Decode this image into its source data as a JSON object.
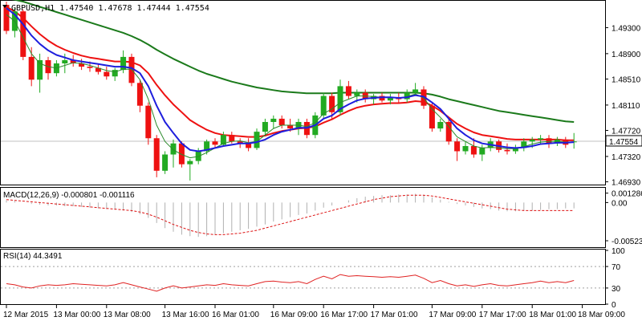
{
  "header": {
    "symbol": "GBPUSD,H1",
    "open": "1.47540",
    "high": "1.47678",
    "low": "1.47444",
    "close": "1.47554",
    "title": "GBPUSD,H1  1.47540  1.47678  1.47444  1.47554"
  },
  "macd_header": "MACD(12,26,9) -0.000801 -0.001116",
  "rsi_header": "RSI(14) 44.3491",
  "colors": {
    "bull": "#22aa22",
    "bear": "#ee1111",
    "sma_fast": "#1e1edd",
    "sma_slow": "#1b7a1b",
    "ma_thin": "#2a8a2a",
    "signal_red": "#dd1111",
    "rsi_line": "#e02222",
    "grid": "#c0c0c0",
    "price_label_bg": "#ffffff"
  },
  "chart_data": [
    {
      "type": "candlestick",
      "title": "GBPUSD,H1",
      "ylim": [
        1.469,
        1.497
      ],
      "y_ticks": [
        "1.49300",
        "1.48900",
        "1.48510",
        "1.48110",
        "1.47720",
        "1.47320",
        "1.46930"
      ],
      "y_tick_values": [
        1.493,
        1.489,
        1.4851,
        1.4811,
        1.4772,
        1.4732,
        1.4693
      ],
      "last_price_label": "1.47554",
      "last_price": 1.47554,
      "candles": [
        [
          1.4965,
          1.497,
          1.492,
          1.4925
        ],
        [
          1.4925,
          1.496,
          1.4915,
          1.4955
        ],
        [
          1.4955,
          1.4958,
          1.488,
          1.4885
        ],
        [
          1.4885,
          1.49,
          1.484,
          1.485
        ],
        [
          1.485,
          1.489,
          1.483,
          1.488
        ],
        [
          1.488,
          1.4885,
          1.485,
          1.486
        ],
        [
          1.486,
          1.488,
          1.4855,
          1.4875
        ],
        [
          1.4875,
          1.489,
          1.486,
          1.488
        ],
        [
          1.488,
          1.4888,
          1.487,
          1.4875
        ],
        [
          1.4875,
          1.4882,
          1.4865,
          1.487
        ],
        [
          1.487,
          1.4878,
          1.4862,
          1.4868
        ],
        [
          1.4868,
          1.4875,
          1.4858,
          1.4862
        ],
        [
          1.4862,
          1.487,
          1.485,
          1.4855
        ],
        [
          1.4855,
          1.4868,
          1.4848,
          1.4865
        ],
        [
          1.4865,
          1.4895,
          1.486,
          1.4885
        ],
        [
          1.4885,
          1.489,
          1.484,
          1.4845
        ],
        [
          1.4845,
          1.485,
          1.48,
          1.481
        ],
        [
          1.481,
          1.4815,
          1.475,
          1.476
        ],
        [
          1.476,
          1.4765,
          1.47,
          1.471
        ],
        [
          1.471,
          1.474,
          1.4705,
          1.4735
        ],
        [
          1.4735,
          1.4758,
          1.4715,
          1.4752
        ],
        [
          1.4752,
          1.4755,
          1.4715,
          1.472
        ],
        [
          1.472,
          1.4728,
          1.4695,
          1.4725
        ],
        [
          1.4725,
          1.4745,
          1.472,
          1.474
        ],
        [
          1.474,
          1.4758,
          1.4735,
          1.4755
        ],
        [
          1.4755,
          1.476,
          1.4745,
          1.475
        ],
        [
          1.475,
          1.477,
          1.4748,
          1.4765
        ],
        [
          1.4765,
          1.477,
          1.4752,
          1.4755
        ],
        [
          1.4755,
          1.476,
          1.4745,
          1.4752
        ],
        [
          1.4752,
          1.476,
          1.474,
          1.4745
        ],
        [
          1.4745,
          1.4775,
          1.4742,
          1.477
        ],
        [
          1.477,
          1.479,
          1.4765,
          1.4785
        ],
        [
          1.4785,
          1.4795,
          1.4775,
          1.479
        ],
        [
          1.479,
          1.4795,
          1.4775,
          1.478
        ],
        [
          1.478,
          1.479,
          1.477,
          1.4775
        ],
        [
          1.4775,
          1.479,
          1.4765,
          1.4785
        ],
        [
          1.4785,
          1.479,
          1.476,
          1.4765
        ],
        [
          1.4765,
          1.48,
          1.476,
          1.4795
        ],
        [
          1.4795,
          1.483,
          1.479,
          1.4825
        ],
        [
          1.4825,
          1.483,
          1.479,
          1.48
        ],
        [
          1.48,
          1.485,
          1.4795,
          1.484
        ],
        [
          1.484,
          1.4848,
          1.482,
          1.4825
        ],
        [
          1.4825,
          1.4835,
          1.4815,
          1.483
        ],
        [
          1.483,
          1.4835,
          1.4815,
          1.482
        ],
        [
          1.482,
          1.4828,
          1.4812,
          1.4825
        ],
        [
          1.4825,
          1.483,
          1.4815,
          1.4818
        ],
        [
          1.4818,
          1.4828,
          1.4812,
          1.4822
        ],
        [
          1.4822,
          1.483,
          1.4815,
          1.482
        ],
        [
          1.482,
          1.4835,
          1.4815,
          1.483
        ],
        [
          1.483,
          1.4845,
          1.4825,
          1.4835
        ],
        [
          1.4835,
          1.484,
          1.4805,
          1.481
        ],
        [
          1.481,
          1.4815,
          1.477,
          1.4775
        ],
        [
          1.4775,
          1.479,
          1.477,
          1.4785
        ],
        [
          1.4785,
          1.479,
          1.475,
          1.4755
        ],
        [
          1.4755,
          1.476,
          1.4725,
          1.474
        ],
        [
          1.474,
          1.4755,
          1.4735,
          1.4748
        ],
        [
          1.4748,
          1.476,
          1.473,
          1.4735
        ],
        [
          1.4735,
          1.475,
          1.4725,
          1.4745
        ],
        [
          1.4745,
          1.476,
          1.474,
          1.4755
        ],
        [
          1.4755,
          1.4758,
          1.4738,
          1.4742
        ],
        [
          1.4742,
          1.4752,
          1.4735,
          1.474
        ],
        [
          1.474,
          1.475,
          1.4736,
          1.4745
        ],
        [
          1.4745,
          1.476,
          1.474,
          1.4755
        ],
        [
          1.4755,
          1.4762,
          1.4745,
          1.4758
        ],
        [
          1.4758,
          1.4765,
          1.475,
          1.476
        ],
        [
          1.476,
          1.4765,
          1.4745,
          1.4752
        ],
        [
          1.4752,
          1.4762,
          1.4748,
          1.4758
        ],
        [
          1.4758,
          1.4762,
          1.4745,
          1.475
        ],
        [
          1.4754,
          1.4768,
          1.4744,
          1.4755
        ]
      ],
      "ma_blue": [
        1.496,
        1.495,
        1.4935,
        1.4918,
        1.4905,
        1.4895,
        1.4888,
        1.4884,
        1.488,
        1.4878,
        1.4876,
        1.4874,
        1.4872,
        1.487,
        1.487,
        1.4868,
        1.486,
        1.484,
        1.481,
        1.4785,
        1.4768,
        1.4752,
        1.4742,
        1.474,
        1.4742,
        1.4745,
        1.4748,
        1.475,
        1.4752,
        1.4752,
        1.4754,
        1.4758,
        1.4765,
        1.477,
        1.4773,
        1.4776,
        1.4776,
        1.478,
        1.479,
        1.4795,
        1.4805,
        1.4812,
        1.4818,
        1.4821,
        1.4822,
        1.4823,
        1.4823,
        1.4822,
        1.4823,
        1.4826,
        1.4824,
        1.4815,
        1.4805,
        1.479,
        1.4775,
        1.4765,
        1.4757,
        1.4752,
        1.475,
        1.4748,
        1.4746,
        1.4745,
        1.4746,
        1.4748,
        1.4751,
        1.4752,
        1.4753,
        1.4753,
        1.4754
      ],
      "ma_red": [
        1.4962,
        1.4955,
        1.4945,
        1.4932,
        1.492,
        1.491,
        1.4902,
        1.4896,
        1.4891,
        1.4887,
        1.4884,
        1.4882,
        1.488,
        1.4878,
        1.4878,
        1.4877,
        1.4872,
        1.486,
        1.4842,
        1.4826,
        1.4812,
        1.48,
        1.4788,
        1.478,
        1.4773,
        1.4768,
        1.4765,
        1.4764,
        1.4763,
        1.4762,
        1.4762,
        1.4764,
        1.4768,
        1.4771,
        1.4773,
        1.4775,
        1.4776,
        1.4778,
        1.4784,
        1.4789,
        1.4796,
        1.4802,
        1.4807,
        1.481,
        1.4812,
        1.4813,
        1.4814,
        1.4814,
        1.4815,
        1.4817,
        1.4816,
        1.481,
        1.4802,
        1.4792,
        1.4782,
        1.4775,
        1.4769,
        1.4765,
        1.4763,
        1.4761,
        1.4759,
        1.4758,
        1.4758,
        1.4758,
        1.4758,
        1.4758,
        1.4758,
        1.4757,
        1.4757
      ],
      "ma_green": [
        1.4975,
        1.4973,
        1.497,
        1.4966,
        1.4962,
        1.4958,
        1.4954,
        1.495,
        1.4946,
        1.4942,
        1.4938,
        1.4934,
        1.493,
        1.4926,
        1.4922,
        1.4917,
        1.4911,
        1.4904,
        1.4896,
        1.4889,
        1.4882,
        1.4876,
        1.487,
        1.4864,
        1.4859,
        1.4855,
        1.4851,
        1.4847,
        1.4844,
        1.4841,
        1.4838,
        1.4836,
        1.4834,
        1.4832,
        1.4831,
        1.483,
        1.4829,
        1.4829,
        1.4829,
        1.4829,
        1.483,
        1.483,
        1.483,
        1.483,
        1.483,
        1.483,
        1.483,
        1.483,
        1.483,
        1.483,
        1.4829,
        1.4827,
        1.4824,
        1.482,
        1.4817,
        1.4814,
        1.4811,
        1.4808,
        1.4805,
        1.4802,
        1.48,
        1.4798,
        1.4796,
        1.4794,
        1.4792,
        1.479,
        1.4788,
        1.4786,
        1.4785
      ],
      "ma_thin": [
        1.495,
        1.494,
        1.4915,
        1.489,
        1.4875,
        1.487,
        1.4868,
        1.4872,
        1.4876,
        1.4875,
        1.4872,
        1.4868,
        1.4864,
        1.4862,
        1.4866,
        1.4866,
        1.485,
        1.482,
        1.478,
        1.4755,
        1.4742,
        1.4735,
        1.473,
        1.4732,
        1.4738,
        1.4745,
        1.4752,
        1.4755,
        1.4756,
        1.4753,
        1.4755,
        1.4765,
        1.4775,
        1.478,
        1.478,
        1.478,
        1.4778,
        1.4784,
        1.4798,
        1.4805,
        1.4815,
        1.482,
        1.4825,
        1.4825,
        1.4824,
        1.4823,
        1.4822,
        1.4822,
        1.4824,
        1.4828,
        1.4822,
        1.4805,
        1.4792,
        1.4778,
        1.4762,
        1.4755,
        1.4748,
        1.4745,
        1.4746,
        1.4745,
        1.4744,
        1.4744,
        1.4747,
        1.4751,
        1.4754,
        1.4755,
        1.4755,
        1.4754,
        1.4754
      ]
    },
    {
      "type": "bar",
      "title": "MACD(12,26,9) -0.000801 -0.001116",
      "ylim": [
        -0.006,
        0.0018
      ],
      "y_ticks": [
        "0.001286",
        "0.00",
        "-0.00523"
      ],
      "y_tick_values": [
        0.001286,
        0.0,
        -0.00523
      ],
      "histogram": [
        0.0003,
        0.0002,
        0.0,
        -0.0002,
        -0.0003,
        -0.0004,
        -0.0004,
        -0.0005,
        -0.0005,
        -0.0006,
        -0.0007,
        -0.0008,
        -0.0009,
        -0.001,
        -0.0011,
        -0.0013,
        -0.0016,
        -0.0021,
        -0.0028,
        -0.0035,
        -0.004,
        -0.0044,
        -0.0046,
        -0.0047,
        -0.0046,
        -0.0044,
        -0.0042,
        -0.004,
        -0.0038,
        -0.0036,
        -0.0033,
        -0.003,
        -0.0026,
        -0.0023,
        -0.002,
        -0.0017,
        -0.0015,
        -0.0011,
        -0.0007,
        -0.0004,
        0.0,
        0.0003,
        0.0006,
        0.0008,
        0.0009,
        0.001,
        0.001,
        0.0011,
        0.0011,
        0.0012,
        0.001,
        0.0007,
        0.0004,
        0.0001,
        -0.0002,
        -0.0004,
        -0.0006,
        -0.0008,
        -0.0009,
        -0.0011,
        -0.0012,
        -0.0012,
        -0.0011,
        -0.0011,
        -0.001,
        -0.0009,
        -0.0009,
        -0.0008,
        -0.0008
      ],
      "signal": [
        0.0004,
        0.0003,
        0.0002,
        0.0001,
        0.0,
        -0.0001,
        -0.0002,
        -0.0003,
        -0.0004,
        -0.0005,
        -0.0006,
        -0.0007,
        -0.0008,
        -0.0009,
        -0.001,
        -0.0011,
        -0.0013,
        -0.0016,
        -0.002,
        -0.0025,
        -0.003,
        -0.0034,
        -0.0038,
        -0.0041,
        -0.0043,
        -0.0044,
        -0.0044,
        -0.0043,
        -0.0042,
        -0.004,
        -0.0038,
        -0.0035,
        -0.0032,
        -0.0029,
        -0.0026,
        -0.0023,
        -0.002,
        -0.0017,
        -0.0014,
        -0.0011,
        -0.0008,
        -0.0005,
        -0.0002,
        0.0001,
        0.0004,
        0.0006,
        0.0008,
        0.0009,
        0.001,
        0.001,
        0.001,
        0.0009,
        0.0007,
        0.0005,
        0.0003,
        0.0001,
        -0.0001,
        -0.0003,
        -0.0005,
        -0.0007,
        -0.0009,
        -0.001,
        -0.0011,
        -0.0011,
        -0.0011,
        -0.0011,
        -0.0011,
        -0.0011,
        -0.0011
      ]
    },
    {
      "type": "line",
      "title": "RSI(14) 44.3491",
      "ylim": [
        0,
        100
      ],
      "y_ticks": [
        "100",
        "70",
        "30",
        "0"
      ],
      "y_tick_values": [
        100,
        70,
        30,
        0
      ],
      "levels": [
        70,
        30
      ],
      "values": [
        38,
        36,
        32,
        30,
        34,
        36,
        35,
        36,
        38,
        37,
        36,
        35,
        34,
        36,
        40,
        36,
        32,
        28,
        24,
        30,
        34,
        30,
        32,
        34,
        36,
        35,
        38,
        36,
        35,
        34,
        38,
        42,
        43,
        41,
        40,
        42,
        38,
        46,
        52,
        47,
        55,
        52,
        53,
        52,
        51,
        50,
        51,
        50,
        52,
        54,
        48,
        40,
        44,
        38,
        34,
        36,
        33,
        36,
        38,
        35,
        34,
        36,
        38,
        40,
        43,
        40,
        42,
        40,
        44
      ]
    }
  ],
  "x_axis": {
    "labels": [
      "12 Mar 2015",
      "13 Mar 00:00",
      "13 Mar 08:00",
      "13 Mar 16:00",
      "16 Mar 01:00",
      "16 Mar 09:00",
      "16 Mar 17:00",
      "17 Mar 01:00",
      "17 Mar 09:00",
      "17 Mar 17:00",
      "18 Mar 01:00",
      "18 Mar 09:00"
    ],
    "label_candle_index": [
      0,
      6,
      12,
      19,
      25,
      32,
      38,
      44,
      51,
      57,
      63,
      69
    ]
  }
}
